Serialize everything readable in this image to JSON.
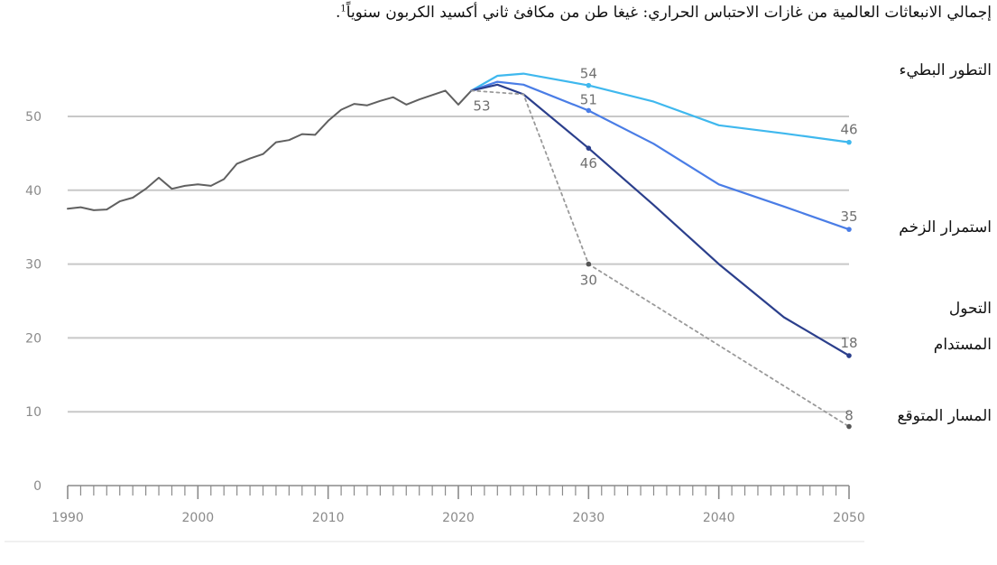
{
  "chart_data": {
    "type": "line",
    "title": "إجمالي الانبعاثات العالمية من غازات الاحتباس الحراري: غيغا طن من مكافئ ثاني أكسيد الكربون سنوياً",
    "title_footnote": "1",
    "title_end": ".",
    "xlabel": "",
    "ylabel": "",
    "xlim": [
      1990,
      2050
    ],
    "ylim": [
      0,
      58
    ],
    "y_ticks": [
      0,
      10,
      20,
      30,
      40,
      50
    ],
    "x_tick_labels": [
      1990,
      2000,
      2010,
      2020,
      2030,
      2040,
      "2050"
    ],
    "grid": "horizontal",
    "legend_placement": "right",
    "colors": {
      "historical": "#606060",
      "slow_evolution": "#3fb8ee",
      "momentum": "#4a7de6",
      "sustainable": "#2b3f8c",
      "expected": "#9a9a9a",
      "grid": "#c8c8c8",
      "axis": "#8a8a8a"
    },
    "scenario_labels": {
      "slow_evolution": "التطور البطيء",
      "momentum": "استمرار الزخم",
      "sustainable_line1": "التحول",
      "sustainable_line2": "المستدام",
      "expected": "المسار المتوقع"
    },
    "series": [
      {
        "key": "historical",
        "x": [
          1990,
          1991,
          1992,
          1993,
          1994,
          1995,
          1996,
          1997,
          1998,
          1999,
          2000,
          2001,
          2002,
          2003,
          2004,
          2005,
          2006,
          2007,
          2008,
          2009,
          2010,
          2011,
          2012,
          2013,
          2014,
          2015,
          2016,
          2017,
          2018,
          2019,
          2020,
          2021
        ],
        "values": [
          37.5,
          37.7,
          37.3,
          37.4,
          38.5,
          39.0,
          40.2,
          41.7,
          40.2,
          40.6,
          40.8,
          40.6,
          41.5,
          43.6,
          44.3,
          44.9,
          46.5,
          46.8,
          47.6,
          47.5,
          49.4,
          50.9,
          51.7,
          51.5,
          52.1,
          52.6,
          51.6,
          52.3,
          52.9,
          53.5,
          51.6,
          53.5
        ],
        "dashed": false
      },
      {
        "key": "slow_evolution",
        "x": [
          2021,
          2023,
          2025,
          2030,
          2035,
          2040,
          2045,
          2050
        ],
        "values": [
          53.5,
          55.5,
          55.8,
          54.2,
          52.0,
          48.8,
          47.7,
          46.5
        ],
        "dashed": false,
        "markers": [
          {
            "x": 2030,
            "y": 54.2,
            "label": "54"
          },
          {
            "x": 2050,
            "y": 46.5,
            "label": "46"
          }
        ]
      },
      {
        "key": "momentum",
        "x": [
          2021,
          2023,
          2025,
          2030,
          2035,
          2040,
          2045,
          2050
        ],
        "values": [
          53.5,
          54.7,
          54.3,
          50.8,
          46.3,
          40.8,
          37.8,
          34.7
        ],
        "dashed": false,
        "markers": [
          {
            "x": 2030,
            "y": 50.8,
            "label": "51"
          },
          {
            "x": 2050,
            "y": 34.7,
            "label": "35"
          }
        ]
      },
      {
        "key": "sustainable",
        "x": [
          2021,
          2023,
          2025,
          2030,
          2035,
          2040,
          2045,
          2050
        ],
        "values": [
          53.5,
          54.3,
          53.0,
          45.7,
          38.0,
          30.0,
          22.8,
          17.6
        ],
        "dashed": false,
        "markers": [
          {
            "x": 2030,
            "y": 45.7,
            "label": "46"
          },
          {
            "x": 2050,
            "y": 17.6,
            "label": "18"
          }
        ]
      },
      {
        "key": "expected",
        "x": [
          2021,
          2025,
          2030,
          2050
        ],
        "values": [
          53.5,
          53.0,
          30.0,
          8.0
        ],
        "dashed": true,
        "markers": [
          {
            "x": 2030,
            "y": 30.0,
            "label": "30"
          },
          {
            "x": 2050,
            "y": 8.0,
            "label": "8"
          }
        ]
      }
    ],
    "annotations": [
      {
        "x": 2021,
        "y": 53.5,
        "label": "53"
      }
    ]
  }
}
